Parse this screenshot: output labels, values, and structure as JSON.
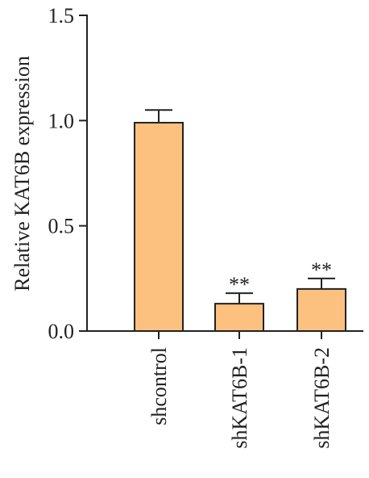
{
  "chart_data": {
    "type": "bar",
    "categories": [
      "shcontrol",
      "shKAT6B-1",
      "shKAT6B-2"
    ],
    "values": [
      0.99,
      0.13,
      0.2
    ],
    "errors": [
      0.06,
      0.05,
      0.05
    ],
    "annotations": [
      "",
      "**",
      "**"
    ],
    "ylabel": "Relative KAT6B expression",
    "ylim": [
      0,
      1.5
    ],
    "yticks": [
      0.0,
      0.5,
      1.0,
      1.5
    ],
    "ytick_labels": [
      "0.0",
      "0.5",
      "1.0",
      "1.5"
    ],
    "bar_color": "#fcc17f",
    "grid": false
  }
}
